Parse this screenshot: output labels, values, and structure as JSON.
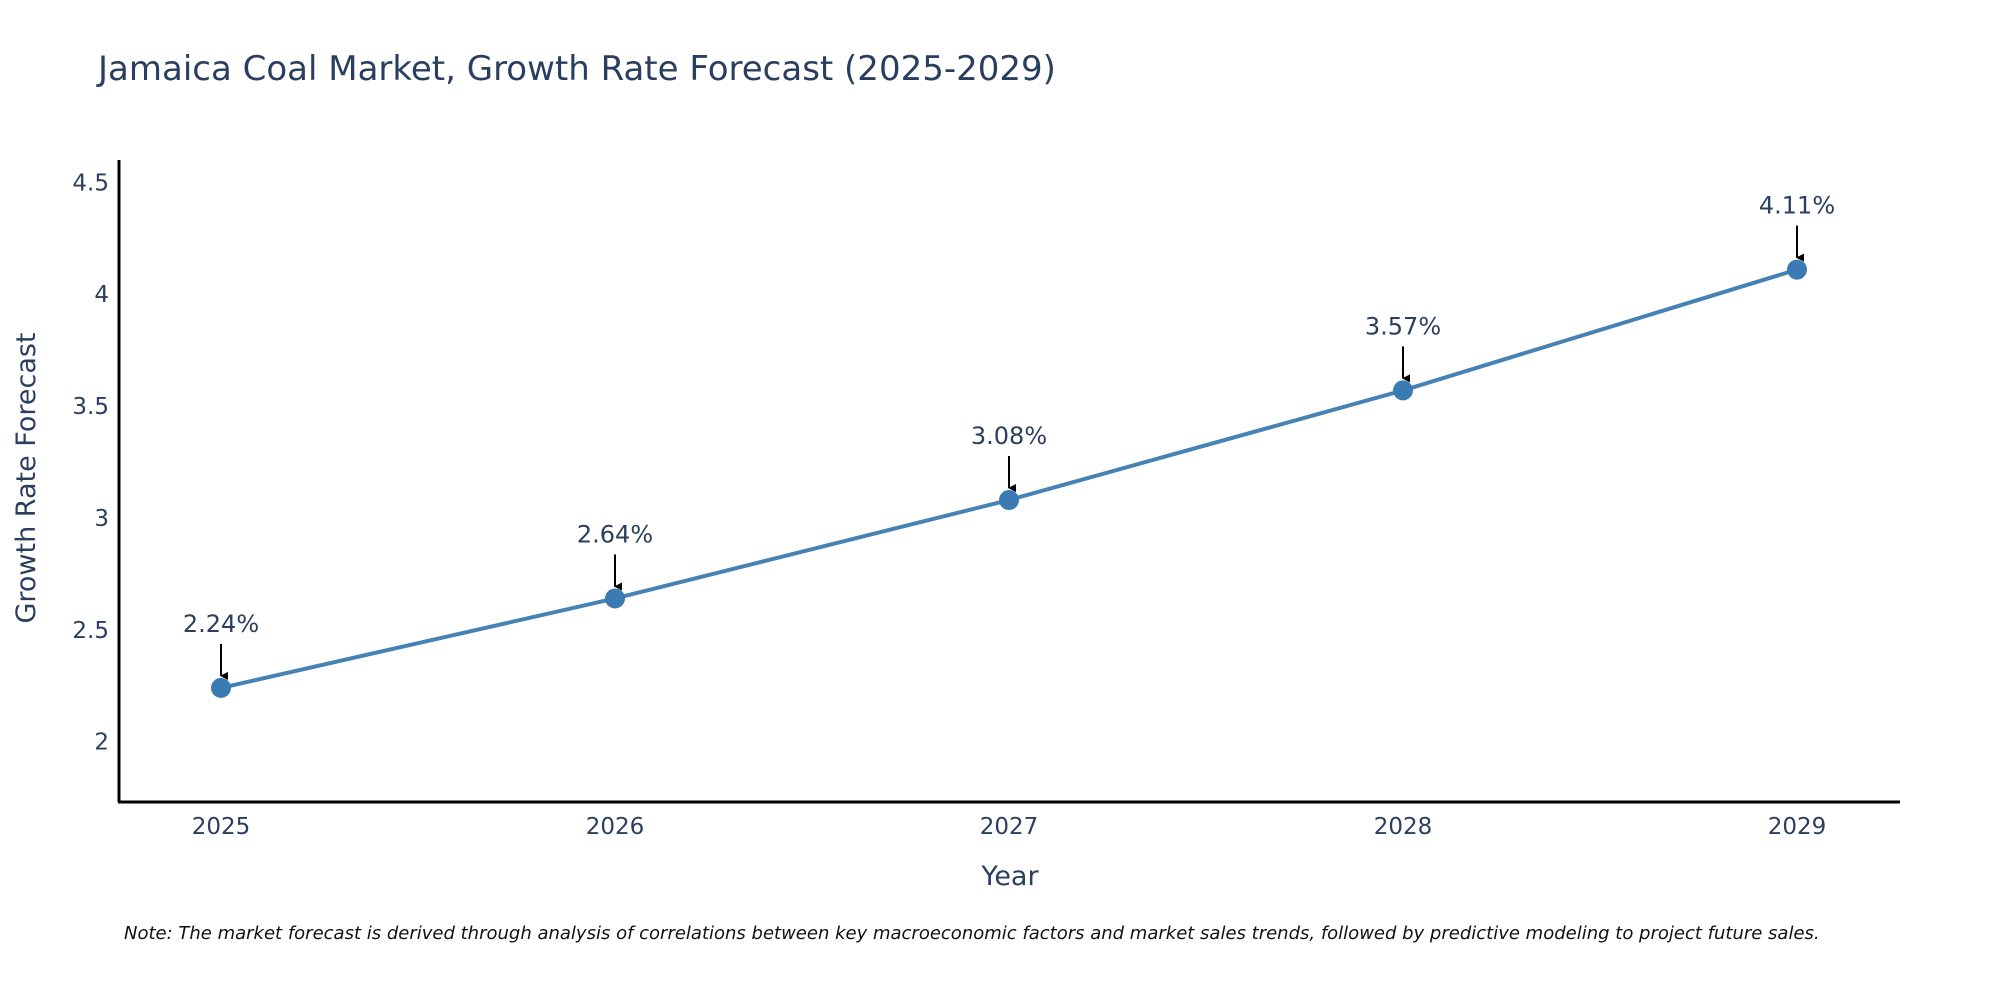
{
  "chart_data": {
    "type": "line",
    "title": "Jamaica Coal Market, Growth Rate Forecast (2025-2029)",
    "xlabel": "Year",
    "ylabel": "Growth Rate Forecast",
    "categories": [
      "2025",
      "2026",
      "2027",
      "2028",
      "2029"
    ],
    "series": [
      {
        "name": "Growth Rate Forecast",
        "values": [
          2.24,
          2.64,
          3.08,
          3.57,
          4.11
        ],
        "labels": [
          "2.24%",
          "2.64%",
          "3.08%",
          "3.57%",
          "4.11%"
        ]
      }
    ],
    "ylim": [
      1.73,
      4.6
    ],
    "yticks": [
      2,
      2.5,
      3,
      3.5,
      4,
      4.5
    ],
    "ytick_labels": [
      "2",
      "2.5",
      "3",
      "3.5",
      "4",
      "4.5"
    ],
    "grid": false,
    "line_color": "#4682b4",
    "marker_color": "#3b7bb3",
    "annotation_arrow_color": "#000000",
    "axis_color": "#000000",
    "text_color": "#2a3f5f",
    "note": "Note: The market forecast is derived through analysis of correlations between key macroeconomic factors and market sales trends, followed by predictive modeling to project future sales."
  }
}
